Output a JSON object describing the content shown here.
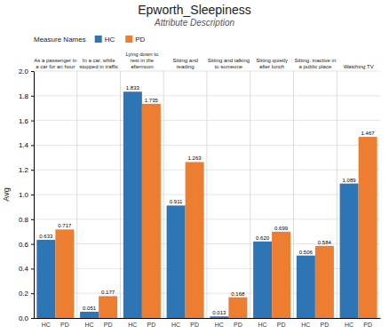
{
  "chart_data": {
    "type": "bar",
    "title": "Epworth_Sleepiness",
    "subtitle": "Attribute Description",
    "categories": [
      "As a passenger in\na car for an hour",
      "In a car, while\nstopped in traffic",
      "Lying down to\nrest in the\nafternoon",
      "Sitting and\nreading",
      "Sitting and talking\nto someone",
      "Sitting quietly\nafter lunch",
      "Sitting, inactive in\na public place",
      "Watching TV"
    ],
    "series": [
      {
        "name": "HC",
        "color": "#2e75b6",
        "values": [
          0.633,
          0.051,
          1.833,
          0.911,
          0.013,
          0.62,
          0.506,
          1.089
        ],
        "value_labels": [
          "0.633",
          "0.051",
          "1.833",
          "0.911",
          "0.013",
          "0.620",
          "0.506",
          "1.089"
        ]
      },
      {
        "name": "PD",
        "color": "#ed7d31",
        "values": [
          0.717,
          0.177,
          1.735,
          1.263,
          0.168,
          0.699,
          0.584,
          1.467
        ],
        "value_labels": [
          "0.717",
          "0.177",
          "1.735",
          "1.263",
          "0.168",
          "0.699",
          "0.584",
          "1.467"
        ]
      }
    ],
    "ylabel": "Avg",
    "ylim": [
      0,
      2.0
    ],
    "yticks": [
      {
        "value": 0.0,
        "label": "0.0"
      },
      0.2,
      0.4,
      0.6,
      0.8,
      {
        "value": 1.0,
        "label": "1.0"
      },
      1.2,
      1.4,
      1.6,
      1.8,
      {
        "value": 2.0,
        "label": "2.0"
      }
    ],
    "legend_title": "Measure Names",
    "legend": "top",
    "grid": true,
    "data_labels": true
  }
}
